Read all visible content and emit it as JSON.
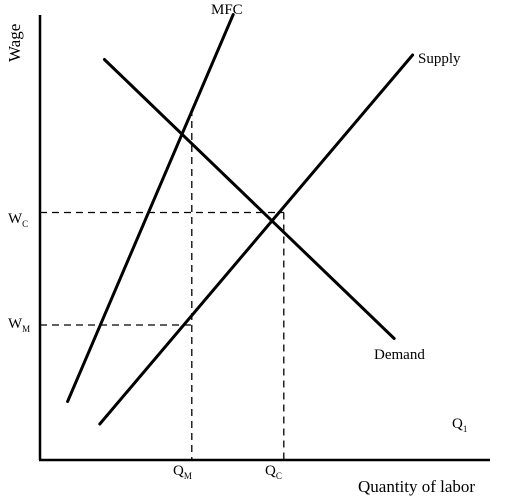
{
  "chart_data": {
    "type": "line",
    "xlabel": "Quantity of labor",
    "ylabel": "Wage",
    "xlim": [
      0,
      10
    ],
    "ylim": [
      0,
      10
    ],
    "grid": false,
    "legend": "none",
    "series": [
      {
        "name": "MFC",
        "x": [
          0.6,
          4.2
        ],
        "y": [
          1.3,
          9.9
        ]
      },
      {
        "name": "Supply",
        "x": [
          1.3,
          8.1
        ],
        "y": [
          0.8,
          9.0
        ]
      },
      {
        "name": "Demand",
        "x": [
          1.4,
          7.7
        ],
        "y": [
          8.9,
          2.7
        ]
      }
    ],
    "annotations": [
      {
        "id": "wc",
        "main": "W",
        "sub": "C",
        "y": 5.5
      },
      {
        "id": "wm",
        "main": "W",
        "sub": "M",
        "y": 3.0
      },
      {
        "id": "qm",
        "main": "Q",
        "sub": "M",
        "x": 3.3
      },
      {
        "id": "qc",
        "main": "Q",
        "sub": "C",
        "x": 5.3
      },
      {
        "id": "q1",
        "main": "Q",
        "sub": "1"
      }
    ],
    "points": {
      "monopsony_demand": {
        "x": 3.3,
        "y": 7.8
      },
      "competitive_eq": {
        "x": 5.3,
        "y": 5.5
      },
      "monopsony_wage": {
        "x": 3.3,
        "y": 3.0
      }
    }
  }
}
